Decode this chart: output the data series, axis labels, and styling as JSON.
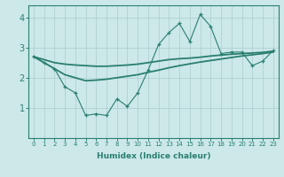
{
  "xlabel": "Humidex (Indice chaleur)",
  "bg_color": "#cce8e8",
  "line_color": "#2a7f6f",
  "x": [
    0,
    1,
    2,
    3,
    4,
    5,
    6,
    7,
    8,
    9,
    10,
    11,
    12,
    13,
    14,
    15,
    16,
    17,
    18,
    19,
    20,
    21,
    22,
    23
  ],
  "y_main": [
    2.7,
    2.5,
    2.3,
    1.7,
    1.5,
    0.75,
    0.8,
    0.75,
    1.3,
    1.05,
    1.5,
    2.25,
    3.1,
    3.5,
    3.8,
    3.2,
    4.1,
    3.7,
    2.8,
    2.85,
    2.85,
    2.4,
    2.55,
    2.9
  ],
  "y_upper": [
    2.7,
    2.6,
    2.5,
    2.45,
    2.42,
    2.4,
    2.38,
    2.38,
    2.4,
    2.42,
    2.45,
    2.5,
    2.55,
    2.6,
    2.63,
    2.65,
    2.68,
    2.72,
    2.75,
    2.78,
    2.8,
    2.82,
    2.84,
    2.88
  ],
  "y_lower": [
    2.7,
    2.5,
    2.3,
    2.1,
    2.0,
    1.9,
    1.92,
    1.95,
    2.0,
    2.05,
    2.1,
    2.18,
    2.25,
    2.33,
    2.4,
    2.46,
    2.52,
    2.57,
    2.62,
    2.67,
    2.72,
    2.76,
    2.8,
    2.85
  ],
  "xlim": [
    0,
    23
  ],
  "ylim": [
    0,
    4.4
  ],
  "yticks": [
    1,
    2,
    3,
    4
  ],
  "xticks": [
    0,
    1,
    2,
    3,
    4,
    5,
    6,
    7,
    8,
    9,
    10,
    11,
    12,
    13,
    14,
    15,
    16,
    17,
    18,
    19,
    20,
    21,
    22,
    23
  ],
  "grid_color": "#aacece"
}
